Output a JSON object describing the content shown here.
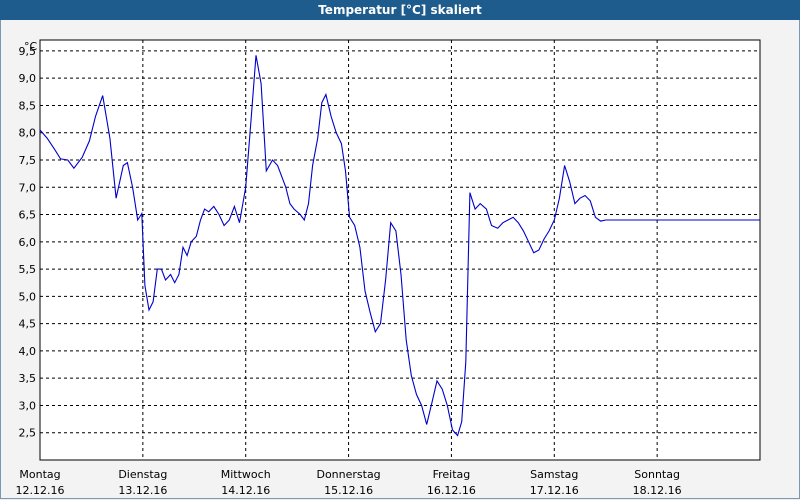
{
  "window": {
    "title": "Temperatur [°C] skaliert"
  },
  "chart_data": {
    "type": "line",
    "title": "Temperatur [°C] skaliert",
    "ylabel": "°C",
    "xlabel": "",
    "ylim": [
      2.0,
      9.7
    ],
    "xlim": [
      0,
      7.0
    ],
    "grid": true,
    "yticks": [
      "2,5",
      "3,0",
      "3,5",
      "4,0",
      "4,5",
      "5,0",
      "5,5",
      "6,0",
      "6,5",
      "7,0",
      "7,5",
      "8,0",
      "8,5",
      "9,0",
      "9,5"
    ],
    "xticks": [
      {
        "day": "Montag",
        "date": "12.12.16"
      },
      {
        "day": "Dienstag",
        "date": "13.12.16"
      },
      {
        "day": "Mittwoch",
        "date": "14.12.16"
      },
      {
        "day": "Donnerstag",
        "date": "15.12.16"
      },
      {
        "day": "Freitag",
        "date": "16.12.16"
      },
      {
        "day": "Samstag",
        "date": "17.12.16"
      },
      {
        "day": "Sonntag",
        "date": "18.12.16"
      }
    ],
    "series": [
      {
        "color": "#0000cc",
        "x": [
          0.0,
          0.07,
          0.14,
          0.2,
          0.27,
          0.33,
          0.41,
          0.48,
          0.54,
          0.61,
          0.68,
          0.74,
          0.81,
          0.85,
          0.9,
          0.95,
          0.99,
          1.02,
          1.06,
          1.1,
          1.14,
          1.18,
          1.22,
          1.27,
          1.31,
          1.35,
          1.39,
          1.43,
          1.47,
          1.52,
          1.56,
          1.6,
          1.64,
          1.69,
          1.74,
          1.79,
          1.84,
          1.89,
          1.94,
          2.0,
          2.05,
          2.1,
          2.15,
          2.2,
          2.26,
          2.31,
          2.35,
          2.39,
          2.43,
          2.47,
          2.53,
          2.57,
          2.61,
          2.65,
          2.7,
          2.74,
          2.78,
          2.83,
          2.88,
          2.93,
          2.97,
          3.01,
          3.06,
          3.11,
          3.16,
          3.21,
          3.26,
          3.31,
          3.36,
          3.41,
          3.46,
          3.51,
          3.56,
          3.61,
          3.66,
          3.71,
          3.76,
          3.81,
          3.86,
          3.91,
          3.96,
          4.01,
          4.06,
          4.1,
          4.14,
          4.18,
          4.23,
          4.28,
          4.34,
          4.39,
          4.45,
          4.5,
          4.55,
          4.6,
          4.65,
          4.7,
          4.75,
          4.8,
          4.85,
          4.9,
          4.95,
          5.0,
          5.05,
          5.1,
          5.15,
          5.2,
          5.25,
          5.3,
          5.35,
          5.4,
          5.45,
          5.5,
          5.55,
          5.6,
          5.65,
          5.7,
          5.75,
          5.8,
          5.85,
          5.9,
          5.95,
          6.0,
          6.05,
          6.1,
          6.15,
          6.2,
          6.25,
          6.3,
          6.35,
          6.4,
          6.45,
          6.5,
          6.55,
          6.6,
          6.65,
          6.7,
          6.75,
          6.8,
          6.85,
          6.9,
          6.95,
          7.0
        ],
        "y": [
          8.05,
          7.9,
          7.7,
          7.52,
          7.5,
          7.35,
          7.55,
          7.85,
          8.3,
          8.68,
          7.9,
          6.8,
          7.4,
          7.45,
          7.0,
          6.4,
          6.52,
          5.2,
          4.75,
          4.9,
          5.5,
          5.5,
          5.3,
          5.4,
          5.25,
          5.4,
          5.9,
          5.75,
          6.0,
          6.1,
          6.4,
          6.6,
          6.55,
          6.65,
          6.5,
          6.3,
          6.4,
          6.65,
          6.35,
          7.0,
          8.2,
          9.42,
          8.9,
          7.3,
          7.5,
          7.4,
          7.2,
          7.0,
          6.7,
          6.6,
          6.5,
          6.4,
          6.7,
          7.4,
          7.9,
          8.55,
          8.7,
          8.3,
          8.0,
          7.8,
          7.3,
          6.45,
          6.3,
          5.9,
          5.1,
          4.7,
          4.35,
          4.5,
          5.3,
          6.35,
          6.2,
          5.4,
          4.2,
          3.55,
          3.2,
          3.0,
          2.65,
          3.05,
          3.45,
          3.3,
          3.0,
          2.55,
          2.45,
          2.7,
          3.8,
          6.9,
          6.6,
          6.7,
          6.6,
          6.3,
          6.25,
          6.35,
          6.4,
          6.45,
          6.35,
          6.2,
          6.0,
          5.8,
          5.85,
          6.05,
          6.2,
          6.4,
          6.8,
          7.4,
          7.1,
          6.7,
          6.8,
          6.85,
          6.75,
          6.45,
          6.38,
          6.4,
          6.4,
          6.4,
          6.4,
          6.4,
          6.4,
          6.4,
          6.4,
          6.4,
          6.4,
          6.4,
          6.4,
          6.4,
          6.4,
          6.4,
          6.4,
          6.4,
          6.4,
          6.4,
          6.4,
          6.4,
          6.4,
          6.4,
          6.4,
          6.4,
          6.4,
          6.4,
          6.4,
          6.4,
          6.4,
          6.4
        ]
      }
    ]
  }
}
